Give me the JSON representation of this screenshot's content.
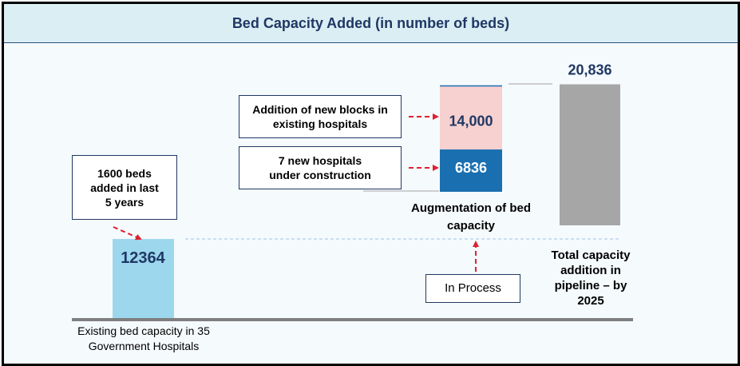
{
  "title": "Bed Capacity Added (in number of beds)",
  "chart_data": {
    "type": "bar",
    "categories": [
      "Existing bed capacity in 35 Government Hospitals",
      "Augmentation of bed capacity",
      "Total capacity addition in pipeline – by 2025"
    ],
    "series": [
      {
        "values": [
          12364,
          0,
          0
        ]
      },
      {
        "values": [
          0,
          6836,
          0
        ]
      },
      {
        "values": [
          0,
          14000,
          0
        ]
      },
      {
        "values": [
          0,
          0,
          20836
        ]
      }
    ],
    "value_labels": [
      "12364",
      "6836",
      "14,000",
      "20,836"
    ],
    "colors": {
      "existing": "#9dd7ee",
      "new_hospitals": "#1a6fb0",
      "new_blocks": "#f7d0d0",
      "total": "#a6a6a6",
      "baseline": "#7f7f7f",
      "arrow": "#e0202e",
      "label_dark": "#1f3864"
    }
  },
  "labels": {
    "existing_category": "Existing bed capacity in 35 Government Hospitals",
    "augmentation_category": "Augmentation of bed capacity",
    "total_category": "Total capacity addition in pipeline – by 2025"
  },
  "annotations": {
    "added_last_5_years": "1600 beds added in last 5 years",
    "new_hospitals": "7 new hospitals under construction",
    "new_blocks": "Addition of new blocks in existing hospitals",
    "in_process": "In Process"
  }
}
